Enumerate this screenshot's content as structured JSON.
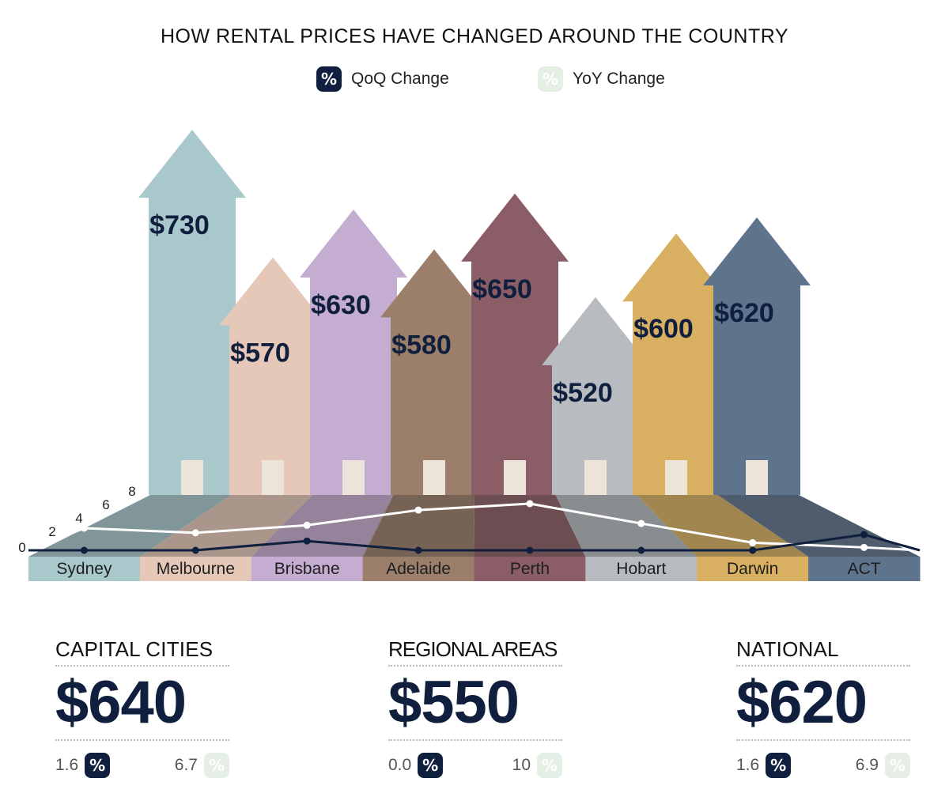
{
  "title": "HOW RENTAL PRICES HAVE CHANGED AROUND THE COUNTRY",
  "legend": {
    "qoq_label": "QoQ Change",
    "yoy_label": "YoY Change",
    "badge_symbol": "%"
  },
  "colors": {
    "navy": "#0f1f3d",
    "yoy_line": "#ffffff",
    "yoy_badge": "#e6efe6",
    "cities": [
      "#a8c8cb",
      "#e5c8b8",
      "#c5acd1",
      "#9c7f6a",
      "#8b5d66",
      "#b8bbc0",
      "#d9b062",
      "#5e738c"
    ]
  },
  "chart_data": {
    "type": "bar",
    "title": "HOW RENTAL PRICES HAVE CHANGED AROUND THE COUNTRY",
    "categories": [
      "Sydney",
      "Melbourne",
      "Brisbane",
      "Adelaide",
      "Perth",
      "Hobart",
      "Darwin",
      "ACT"
    ],
    "series": [
      {
        "name": "Median rent",
        "values": [
          730,
          570,
          630,
          580,
          650,
          520,
          600,
          620
        ],
        "labels": [
          "$730",
          "$570",
          "$630",
          "$580",
          "$650",
          "$520",
          "$600",
          "$620"
        ]
      }
    ],
    "line_series": [
      {
        "name": "QoQ Change",
        "values": [
          0.0,
          0.0,
          1.6,
          0.0,
          0.0,
          0.0,
          0.0,
          2.7
        ]
      },
      {
        "name": "YoY Change",
        "values": [
          3.8,
          3.0,
          4.3,
          6.9,
          8.0,
          4.6,
          1.3,
          0.5
        ]
      }
    ],
    "y_axis_ticks": [
      "0",
      "2",
      "4",
      "6",
      "8"
    ],
    "y_axis_range": [
      0,
      8
    ],
    "grid": false,
    "legend_position": "top-center"
  },
  "summary": [
    {
      "label": "CAPITAL CITIES",
      "value": "$640",
      "qoq": "1.6",
      "yoy": "6.7"
    },
    {
      "label": "REGIONAL AREAS",
      "value": "$550",
      "qoq": "0.0",
      "yoy": "10"
    },
    {
      "label": "NATIONAL",
      "value": "$620",
      "qoq": "1.6",
      "yoy": "6.9"
    }
  ]
}
